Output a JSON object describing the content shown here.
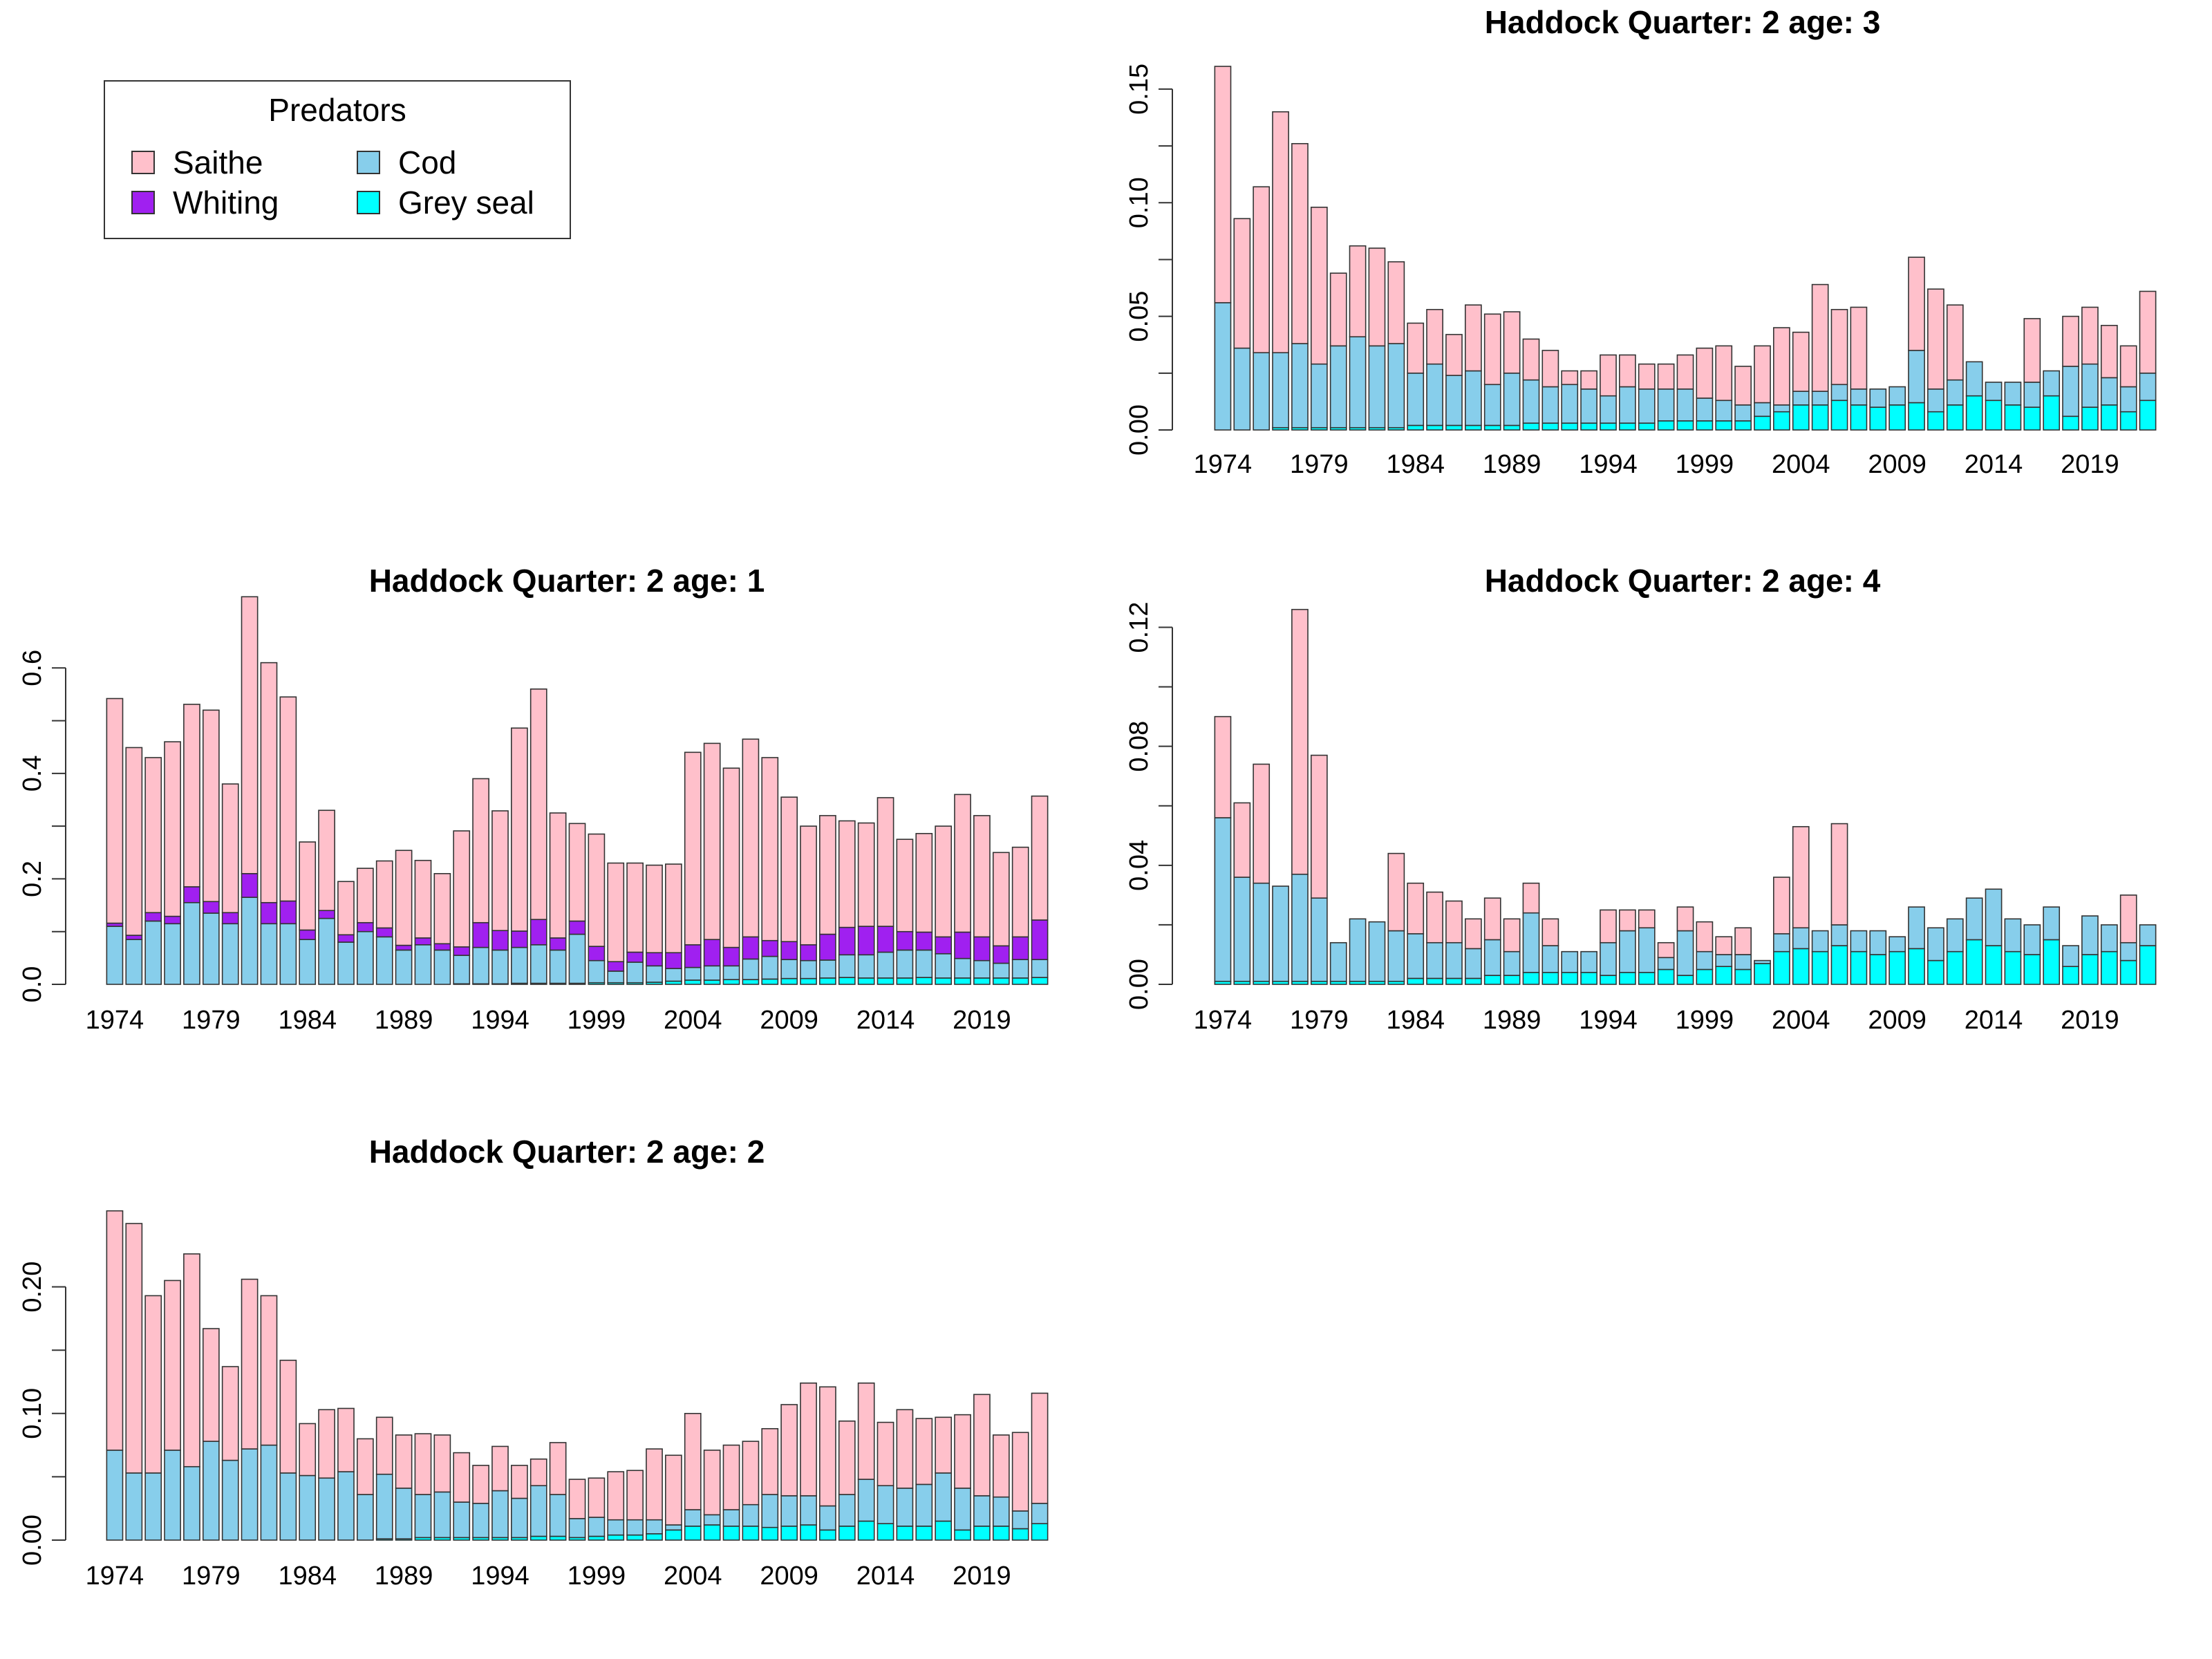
{
  "legend": {
    "title": "Predators",
    "items": [
      {
        "label": "Saithe",
        "color": "#FFC0CB"
      },
      {
        "label": "Whiting",
        "color": "#A020F0"
      },
      {
        "label": "Cod",
        "color": "#87CEEB"
      },
      {
        "label": "Grey seal",
        "color": "#00FFFF"
      }
    ]
  },
  "chart_data": [
    {
      "type": "bar",
      "stacked": true,
      "title": "Haddock  Quarter: 2  age: 1",
      "xlabel": "",
      "ylabel": "",
      "categories": [
        1974,
        1975,
        1976,
        1977,
        1978,
        1979,
        1980,
        1981,
        1982,
        1983,
        1984,
        1985,
        1986,
        1987,
        1988,
        1989,
        1990,
        1991,
        1992,
        1993,
        1994,
        1995,
        1996,
        1997,
        1998,
        1999,
        2000,
        2001,
        2002,
        2003,
        2004,
        2005,
        2006,
        2007,
        2008,
        2009,
        2010,
        2011,
        2012,
        2013,
        2014,
        2015,
        2016,
        2017,
        2018,
        2019,
        2020,
        2021,
        2022
      ],
      "x_tick_labels": [
        "1974",
        "1979",
        "1984",
        "1989",
        "1994",
        "1999",
        "2004",
        "2009",
        "2014",
        "2019"
      ],
      "y_ticks": [
        "0.0",
        "0.2",
        "0.4",
        "0.6"
      ],
      "ylim": [
        0,
        0.7
      ],
      "series": [
        {
          "name": "Grey seal",
          "color": "#00FFFF",
          "values": [
            0,
            0,
            0,
            0,
            0,
            0,
            0,
            0,
            0,
            0,
            0,
            0,
            0,
            0,
            0,
            0,
            0,
            0,
            0.001,
            0.001,
            0.001,
            0.002,
            0.002,
            0.002,
            0.002,
            0.003,
            0.003,
            0.003,
            0.004,
            0.006,
            0.008,
            0.008,
            0.009,
            0.009,
            0.01,
            0.011,
            0.011,
            0.012,
            0.013,
            0.012,
            0.012,
            0.012,
            0.013,
            0.012,
            0.012,
            0.012,
            0.012,
            0.012,
            0.013
          ]
        },
        {
          "name": "Cod",
          "color": "#87CEEB",
          "values": [
            0.11,
            0.085,
            0.12,
            0.115,
            0.155,
            0.135,
            0.115,
            0.165,
            0.115,
            0.115,
            0.085,
            0.125,
            0.08,
            0.1,
            0.09,
            0.065,
            0.075,
            0.065,
            0.054,
            0.069,
            0.064,
            0.068,
            0.073,
            0.063,
            0.093,
            0.042,
            0.022,
            0.039,
            0.031,
            0.024,
            0.024,
            0.027,
            0.026,
            0.039,
            0.043,
            0.036,
            0.034,
            0.034,
            0.043,
            0.044,
            0.049,
            0.053,
            0.052,
            0.046,
            0.037,
            0.033,
            0.028,
            0.035,
            0.034
          ]
        },
        {
          "name": "Whiting",
          "color": "#A020F0",
          "values": [
            0.006,
            0.008,
            0.016,
            0.014,
            0.03,
            0.022,
            0.021,
            0.045,
            0.04,
            0.043,
            0.018,
            0.015,
            0.014,
            0.017,
            0.017,
            0.009,
            0.013,
            0.012,
            0.016,
            0.047,
            0.037,
            0.031,
            0.048,
            0.023,
            0.025,
            0.027,
            0.018,
            0.019,
            0.025,
            0.03,
            0.043,
            0.05,
            0.035,
            0.042,
            0.03,
            0.034,
            0.03,
            0.049,
            0.052,
            0.054,
            0.049,
            0.035,
            0.034,
            0.032,
            0.05,
            0.045,
            0.033,
            0.043,
            0.075
          ]
        },
        {
          "name": "Saithe",
          "color": "#FFC0CB",
          "values": [
            0.426,
            0.356,
            0.294,
            0.331,
            0.346,
            0.363,
            0.244,
            0.525,
            0.455,
            0.387,
            0.167,
            0.19,
            0.101,
            0.103,
            0.127,
            0.18,
            0.147,
            0.133,
            0.22,
            0.273,
            0.227,
            0.385,
            0.437,
            0.237,
            0.185,
            0.213,
            0.187,
            0.169,
            0.166,
            0.168,
            0.365,
            0.372,
            0.34,
            0.375,
            0.347,
            0.274,
            0.225,
            0.225,
            0.202,
            0.196,
            0.244,
            0.175,
            0.187,
            0.21,
            0.261,
            0.23,
            0.177,
            0.17,
            0.235
          ]
        }
      ]
    },
    {
      "type": "bar",
      "stacked": true,
      "title": "Haddock  Quarter: 2  age: 2",
      "xlabel": "",
      "ylabel": "",
      "categories": [
        1974,
        1975,
        1976,
        1977,
        1978,
        1979,
        1980,
        1981,
        1982,
        1983,
        1984,
        1985,
        1986,
        1987,
        1988,
        1989,
        1990,
        1991,
        1992,
        1993,
        1994,
        1995,
        1996,
        1997,
        1998,
        1999,
        2000,
        2001,
        2002,
        2003,
        2004,
        2005,
        2006,
        2007,
        2008,
        2009,
        2010,
        2011,
        2012,
        2013,
        2014,
        2015,
        2016,
        2017,
        2018,
        2019,
        2020,
        2021,
        2022
      ],
      "x_tick_labels": [
        "1974",
        "1979",
        "1984",
        "1989",
        "1994",
        "1999",
        "2004",
        "2009",
        "2014",
        "2019"
      ],
      "y_ticks": [
        "0.00",
        "0.10",
        "0.20"
      ],
      "ylim": [
        0,
        0.25
      ],
      "series": [
        {
          "name": "Grey seal",
          "color": "#00FFFF",
          "values": [
            0,
            0,
            0,
            0,
            0,
            0,
            0,
            0,
            0,
            0,
            0,
            0,
            0,
            0,
            0.001,
            0.001,
            0.002,
            0.002,
            0.002,
            0.002,
            0.002,
            0.002,
            0.003,
            0.003,
            0.002,
            0.003,
            0.004,
            0.004,
            0.005,
            0.008,
            0.011,
            0.012,
            0.011,
            0.011,
            0.01,
            0.011,
            0.012,
            0.008,
            0.011,
            0.015,
            0.013,
            0.011,
            0.011,
            0.015,
            0.008,
            0.011,
            0.011,
            0.009,
            0.013
          ]
        },
        {
          "name": "Cod",
          "color": "#87CEEB",
          "values": [
            0.071,
            0.053,
            0.053,
            0.071,
            0.058,
            0.078,
            0.063,
            0.072,
            0.075,
            0.053,
            0.051,
            0.049,
            0.054,
            0.036,
            0.051,
            0.04,
            0.034,
            0.036,
            0.028,
            0.027,
            0.037,
            0.031,
            0.04,
            0.033,
            0.015,
            0.015,
            0.012,
            0.012,
            0.011,
            0.004,
            0.013,
            0.008,
            0.013,
            0.017,
            0.026,
            0.024,
            0.023,
            0.019,
            0.025,
            0.033,
            0.03,
            0.03,
            0.033,
            0.038,
            0.033,
            0.024,
            0.023,
            0.014,
            0.016
          ]
        },
        {
          "name": "Saithe",
          "color": "#FFC0CB",
          "values": [
            0.189,
            0.197,
            0.14,
            0.134,
            0.168,
            0.089,
            0.074,
            0.134,
            0.118,
            0.089,
            0.041,
            0.054,
            0.05,
            0.044,
            0.045,
            0.042,
            0.048,
            0.045,
            0.039,
            0.03,
            0.035,
            0.026,
            0.021,
            0.041,
            0.031,
            0.031,
            0.038,
            0.039,
            0.056,
            0.055,
            0.076,
            0.051,
            0.051,
            0.05,
            0.052,
            0.072,
            0.089,
            0.094,
            0.058,
            0.076,
            0.05,
            0.062,
            0.052,
            0.044,
            0.058,
            0.08,
            0.049,
            0.062,
            0.087
          ]
        }
      ]
    },
    {
      "type": "bar",
      "stacked": true,
      "title": "Haddock  Quarter: 2  age: 3",
      "xlabel": "",
      "ylabel": "",
      "categories": [
        1974,
        1975,
        1976,
        1977,
        1978,
        1979,
        1980,
        1981,
        1982,
        1983,
        1984,
        1985,
        1986,
        1987,
        1988,
        1989,
        1990,
        1991,
        1992,
        1993,
        1994,
        1995,
        1996,
        1997,
        1998,
        1999,
        2000,
        2001,
        2002,
        2003,
        2004,
        2005,
        2006,
        2007,
        2008,
        2009,
        2010,
        2011,
        2012,
        2013,
        2014,
        2015,
        2016,
        2017,
        2018,
        2019,
        2020,
        2021,
        2022
      ],
      "x_tick_labels": [
        "1974",
        "1979",
        "1984",
        "1989",
        "1994",
        "1999",
        "2004",
        "2009",
        "2014",
        "2019"
      ],
      "y_ticks": [
        "0.00",
        "0.05",
        "0.10",
        "0.15"
      ],
      "ylim": [
        0,
        0.16
      ],
      "series": [
        {
          "name": "Grey seal",
          "color": "#00FFFF",
          "values": [
            0,
            0,
            0,
            0.001,
            0.001,
            0.001,
            0.001,
            0.001,
            0.001,
            0.001,
            0.002,
            0.002,
            0.002,
            0.002,
            0.002,
            0.002,
            0.003,
            0.003,
            0.003,
            0.003,
            0.003,
            0.003,
            0.003,
            0.004,
            0.004,
            0.004,
            0.004,
            0.004,
            0.006,
            0.008,
            0.011,
            0.011,
            0.013,
            0.011,
            0.01,
            0.011,
            0.012,
            0.008,
            0.011,
            0.015,
            0.013,
            0.011,
            0.01,
            0.015,
            0.006,
            0.01,
            0.011,
            0.008,
            0.013
          ]
        },
        {
          "name": "Cod",
          "color": "#87CEEB",
          "values": [
            0.056,
            0.036,
            0.034,
            0.033,
            0.037,
            0.028,
            0.036,
            0.04,
            0.036,
            0.037,
            0.023,
            0.027,
            0.022,
            0.024,
            0.018,
            0.023,
            0.019,
            0.016,
            0.017,
            0.015,
            0.012,
            0.016,
            0.015,
            0.014,
            0.014,
            0.01,
            0.009,
            0.007,
            0.006,
            0.003,
            0.006,
            0.006,
            0.007,
            0.007,
            0.008,
            0.008,
            0.023,
            0.01,
            0.011,
            0.015,
            0.008,
            0.01,
            0.011,
            0.011,
            0.022,
            0.019,
            0.012,
            0.011,
            0.012
          ]
        },
        {
          "name": "Saithe",
          "color": "#FFC0CB",
          "values": [
            0.104,
            0.057,
            0.073,
            0.106,
            0.088,
            0.069,
            0.032,
            0.04,
            0.043,
            0.036,
            0.022,
            0.024,
            0.018,
            0.029,
            0.031,
            0.027,
            0.018,
            0.016,
            0.006,
            0.008,
            0.018,
            0.014,
            0.011,
            0.011,
            0.015,
            0.022,
            0.024,
            0.017,
            0.025,
            0.034,
            0.026,
            0.047,
            0.033,
            0.036,
            0,
            0,
            0.041,
            0.044,
            0.033,
            0,
            0,
            0,
            0.028,
            0,
            0.022,
            0.025,
            0.023,
            0.018,
            0.036
          ]
        }
      ]
    },
    {
      "type": "bar",
      "stacked": true,
      "title": "Haddock  Quarter: 2  age: 4",
      "xlabel": "",
      "ylabel": "",
      "categories": [
        1974,
        1975,
        1976,
        1977,
        1978,
        1979,
        1980,
        1981,
        1982,
        1983,
        1984,
        1985,
        1986,
        1987,
        1988,
        1989,
        1990,
        1991,
        1992,
        1993,
        1994,
        1995,
        1996,
        1997,
        1998,
        1999,
        2000,
        2001,
        2002,
        2003,
        2004,
        2005,
        2006,
        2007,
        2008,
        2009,
        2010,
        2011,
        2012,
        2013,
        2014,
        2015,
        2016,
        2017,
        2018,
        2019,
        2020,
        2021,
        2022
      ],
      "x_tick_labels": [
        "1974",
        "1979",
        "1984",
        "1989",
        "1994",
        "1999",
        "2004",
        "2009",
        "2014",
        "2019"
      ],
      "y_ticks": [
        "0.00",
        "0.04",
        "0.08",
        "0.12"
      ],
      "ylim": [
        0,
        0.125
      ],
      "series": [
        {
          "name": "Grey seal",
          "color": "#00FFFF",
          "values": [
            0.001,
            0.001,
            0.001,
            0.001,
            0.001,
            0.001,
            0.001,
            0.001,
            0.001,
            0.001,
            0.002,
            0.002,
            0.002,
            0.002,
            0.003,
            0.003,
            0.004,
            0.004,
            0.004,
            0.004,
            0.003,
            0.004,
            0.004,
            0.005,
            0.003,
            0.005,
            0.006,
            0.005,
            0.007,
            0.011,
            0.012,
            0.011,
            0.013,
            0.011,
            0.01,
            0.011,
            0.012,
            0.008,
            0.011,
            0.015,
            0.013,
            0.011,
            0.01,
            0.015,
            0.006,
            0.01,
            0.011,
            0.008,
            0.013
          ]
        },
        {
          "name": "Cod",
          "color": "#87CEEB",
          "values": [
            0.055,
            0.035,
            0.033,
            0.032,
            0.036,
            0.028,
            0.013,
            0.021,
            0.02,
            0.017,
            0.015,
            0.012,
            0.012,
            0.01,
            0.012,
            0.008,
            0.02,
            0.009,
            0.007,
            0.007,
            0.011,
            0.014,
            0.015,
            0.004,
            0.015,
            0.006,
            0.004,
            0.005,
            0.001,
            0.006,
            0.007,
            0.007,
            0.007,
            0.007,
            0.008,
            0.005,
            0.014,
            0.011,
            0.011,
            0.014,
            0.019,
            0.011,
            0.01,
            0.011,
            0.007,
            0.013,
            0.009,
            0.006,
            0.007
          ]
        },
        {
          "name": "Saithe",
          "color": "#FFC0CB",
          "values": [
            0.034,
            0.025,
            0.04,
            0,
            0.089,
            0.048,
            0,
            0,
            0,
            0.026,
            0.017,
            0.017,
            0.014,
            0.01,
            0.014,
            0.011,
            0.01,
            0.009,
            0,
            0,
            0.011,
            0.007,
            0.006,
            0.005,
            0.008,
            0.01,
            0.006,
            0.009,
            0,
            0.019,
            0.034,
            0,
            0.034,
            0,
            0,
            0,
            0,
            0,
            0,
            0,
            0,
            0,
            0,
            0,
            0,
            0,
            0,
            0.016,
            0
          ]
        }
      ]
    }
  ]
}
